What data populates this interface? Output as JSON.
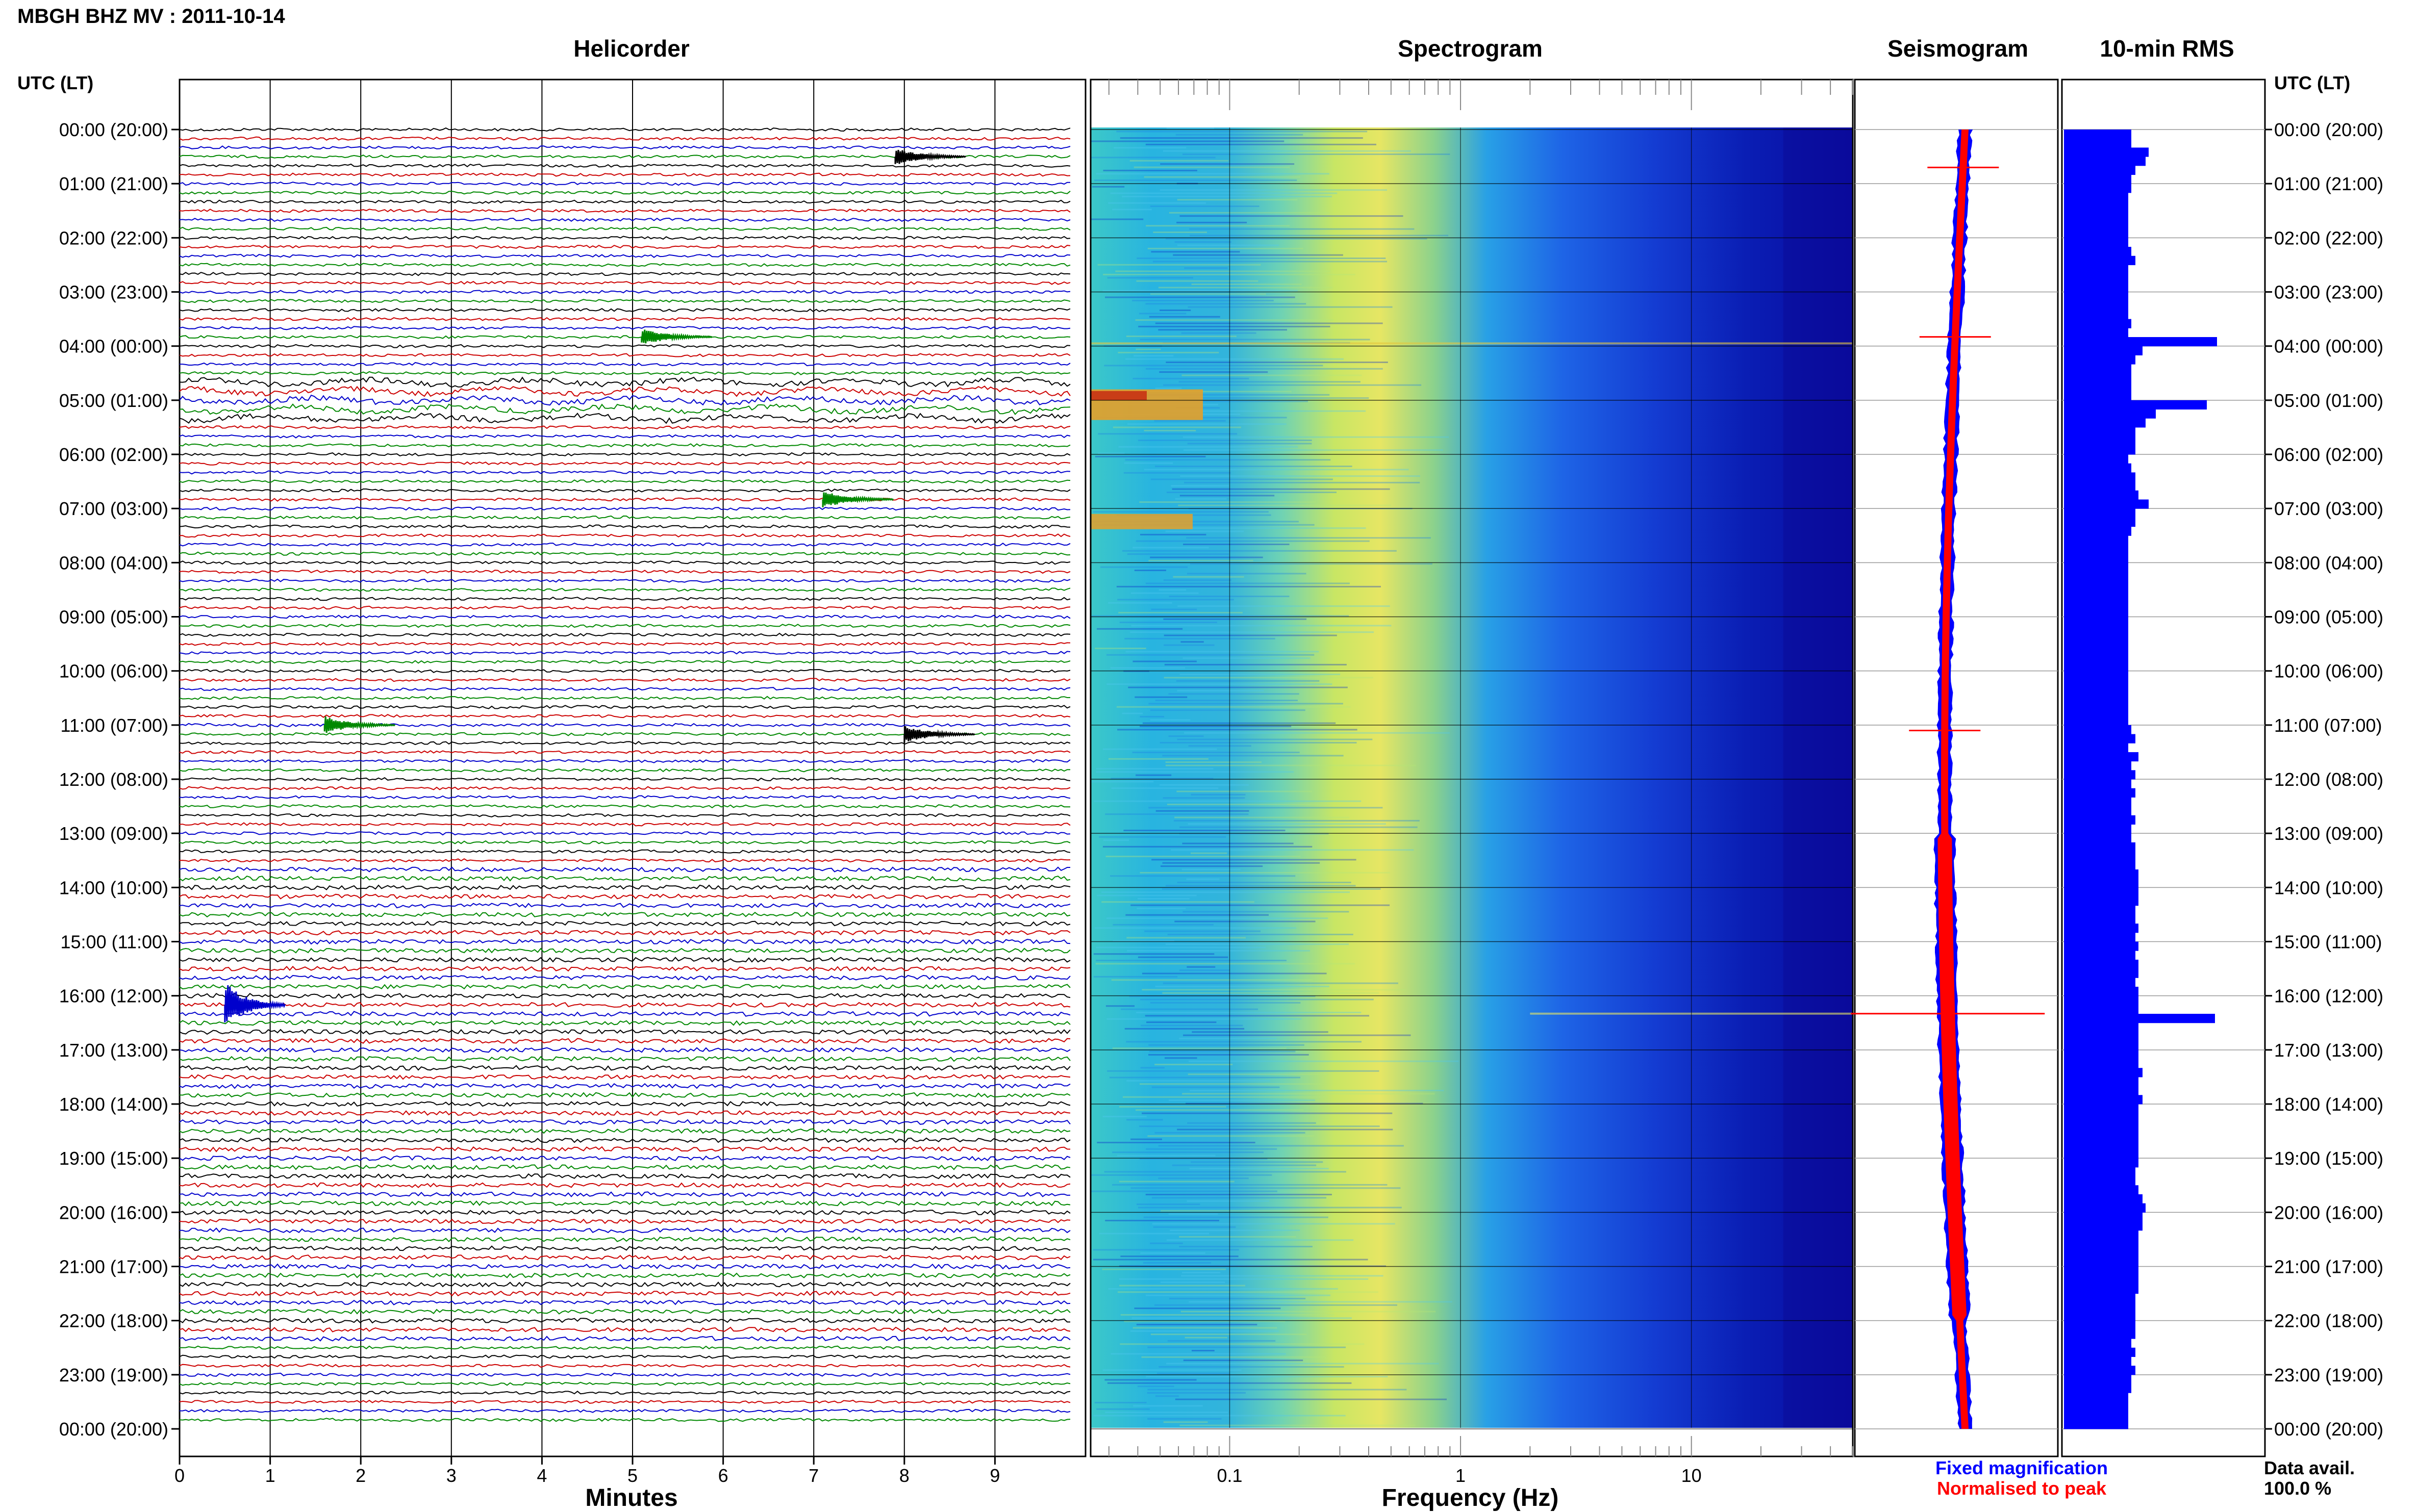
{
  "header": {
    "title": "MBGH BHZ MV : 2011-10-14"
  },
  "panels": {
    "helicorder": "Helicorder",
    "spectrogram": "Spectrogram",
    "seismogram": "Seismogram",
    "rms": "10-min RMS"
  },
  "axes": {
    "left_label": "UTC (LT)",
    "right_label": "UTC (LT)",
    "helicorder_xlabel": "Minutes",
    "spectrogram_xlabel": "Frequency (Hz)"
  },
  "legend": {
    "fixed": "Fixed magnification",
    "normalised": "Normalised to peak",
    "fixed_color": "#0000ff",
    "normalised_color": "#ff0000"
  },
  "data_avail": {
    "label": "Data avail.",
    "value": "100.0 %"
  },
  "chart_data": [
    {
      "type": "line",
      "panel": "helicorder",
      "xlabel": "Minutes",
      "xticks": [
        0,
        1,
        2,
        3,
        4,
        5,
        6,
        7,
        8,
        9
      ],
      "xlim": [
        0,
        10
      ],
      "y_time_labels": [
        "00:00 (20:00)",
        "01:00 (21:00)",
        "02:00 (22:00)",
        "03:00 (23:00)",
        "04:00 (00:00)",
        "05:00 (01:00)",
        "06:00 (02:00)",
        "07:00 (03:00)",
        "08:00 (04:00)",
        "09:00 (05:00)",
        "10:00 (06:00)",
        "11:00 (07:00)",
        "12:00 (08:00)",
        "13:00 (09:00)",
        "14:00 (10:00)",
        "15:00 (11:00)",
        "16:00 (12:00)",
        "17:00 (13:00)",
        "18:00 (14:00)",
        "19:00 (15:00)",
        "20:00 (16:00)",
        "21:00 (17:00)",
        "22:00 (18:00)",
        "23:00 (19:00)",
        "00:00 (20:00)"
      ],
      "trace_colors": [
        "#000000",
        "#cc0000",
        "#0000cc",
        "#008800"
      ],
      "events": [
        {
          "hour": 0.5,
          "minute": 7.9,
          "color": "#000000"
        },
        {
          "hour": 3.83,
          "minute": 5.1,
          "color": "#008800"
        },
        {
          "hour": 6.83,
          "minute": 7.1,
          "color": "#008800"
        },
        {
          "hour": 11.0,
          "minute": 1.6,
          "color": "#008800"
        },
        {
          "hour": 11.17,
          "minute": 8.0,
          "color": "#000000"
        },
        {
          "hour": 16.17,
          "minute": 0.5,
          "color": "#0000cc"
        }
      ]
    },
    {
      "type": "heatmap",
      "panel": "spectrogram",
      "xlabel": "Frequency (Hz)",
      "xscale": "log",
      "xticks": [
        0.1,
        1,
        10
      ],
      "xlim": [
        0.025,
        50
      ]
    },
    {
      "type": "bar",
      "panel": "rms",
      "orientation": "horizontal",
      "hours_per_bar": 0.1667,
      "values": [
        0.66,
        0.66,
        0.83,
        0.8,
        0.7,
        0.66,
        0.66,
        0.63,
        0.63,
        0.63,
        0.63,
        0.63,
        0.63,
        0.66,
        0.7,
        0.63,
        0.63,
        0.63,
        0.63,
        0.63,
        0.63,
        0.66,
        0.63,
        1.5,
        0.77,
        0.7,
        0.66,
        0.66,
        0.66,
        0.66,
        1.4,
        0.9,
        0.8,
        0.7,
        0.7,
        0.7,
        0.63,
        0.66,
        0.7,
        0.7,
        0.73,
        0.83,
        0.7,
        0.7,
        0.66,
        0.63,
        0.63,
        0.63,
        0.63,
        0.63,
        0.63,
        0.63,
        0.63,
        0.63,
        0.63,
        0.63,
        0.63,
        0.63,
        0.63,
        0.63,
        0.63,
        0.63,
        0.63,
        0.63,
        0.63,
        0.63,
        0.66,
        0.7,
        0.63,
        0.73,
        0.66,
        0.7,
        0.66,
        0.7,
        0.66,
        0.66,
        0.7,
        0.66,
        0.66,
        0.7,
        0.7,
        0.7,
        0.73,
        0.73,
        0.73,
        0.73,
        0.7,
        0.7,
        0.73,
        0.7,
        0.73,
        0.7,
        0.73,
        0.73,
        0.7,
        0.73,
        0.73,
        0.73,
        1.48,
        0.73,
        0.73,
        0.73,
        0.73,
        0.73,
        0.77,
        0.73,
        0.73,
        0.77,
        0.73,
        0.73,
        0.73,
        0.73,
        0.73,
        0.73,
        0.73,
        0.7,
        0.7,
        0.73,
        0.77,
        0.8,
        0.77,
        0.77,
        0.73,
        0.73,
        0.73,
        0.73,
        0.73,
        0.73,
        0.73,
        0.7,
        0.7,
        0.7,
        0.7,
        0.7,
        0.66,
        0.7,
        0.66,
        0.7,
        0.66,
        0.66,
        0.63,
        0.63,
        0.63,
        0.63
      ]
    },
    {
      "type": "line",
      "panel": "seismogram",
      "series": [
        {
          "name": "Fixed magnification",
          "color": "#0000ff"
        },
        {
          "name": "Normalised to peak",
          "color": "#ff0000"
        }
      ],
      "spikes_hours": [
        0.7,
        3.83,
        11.1,
        16.33
      ]
    }
  ]
}
